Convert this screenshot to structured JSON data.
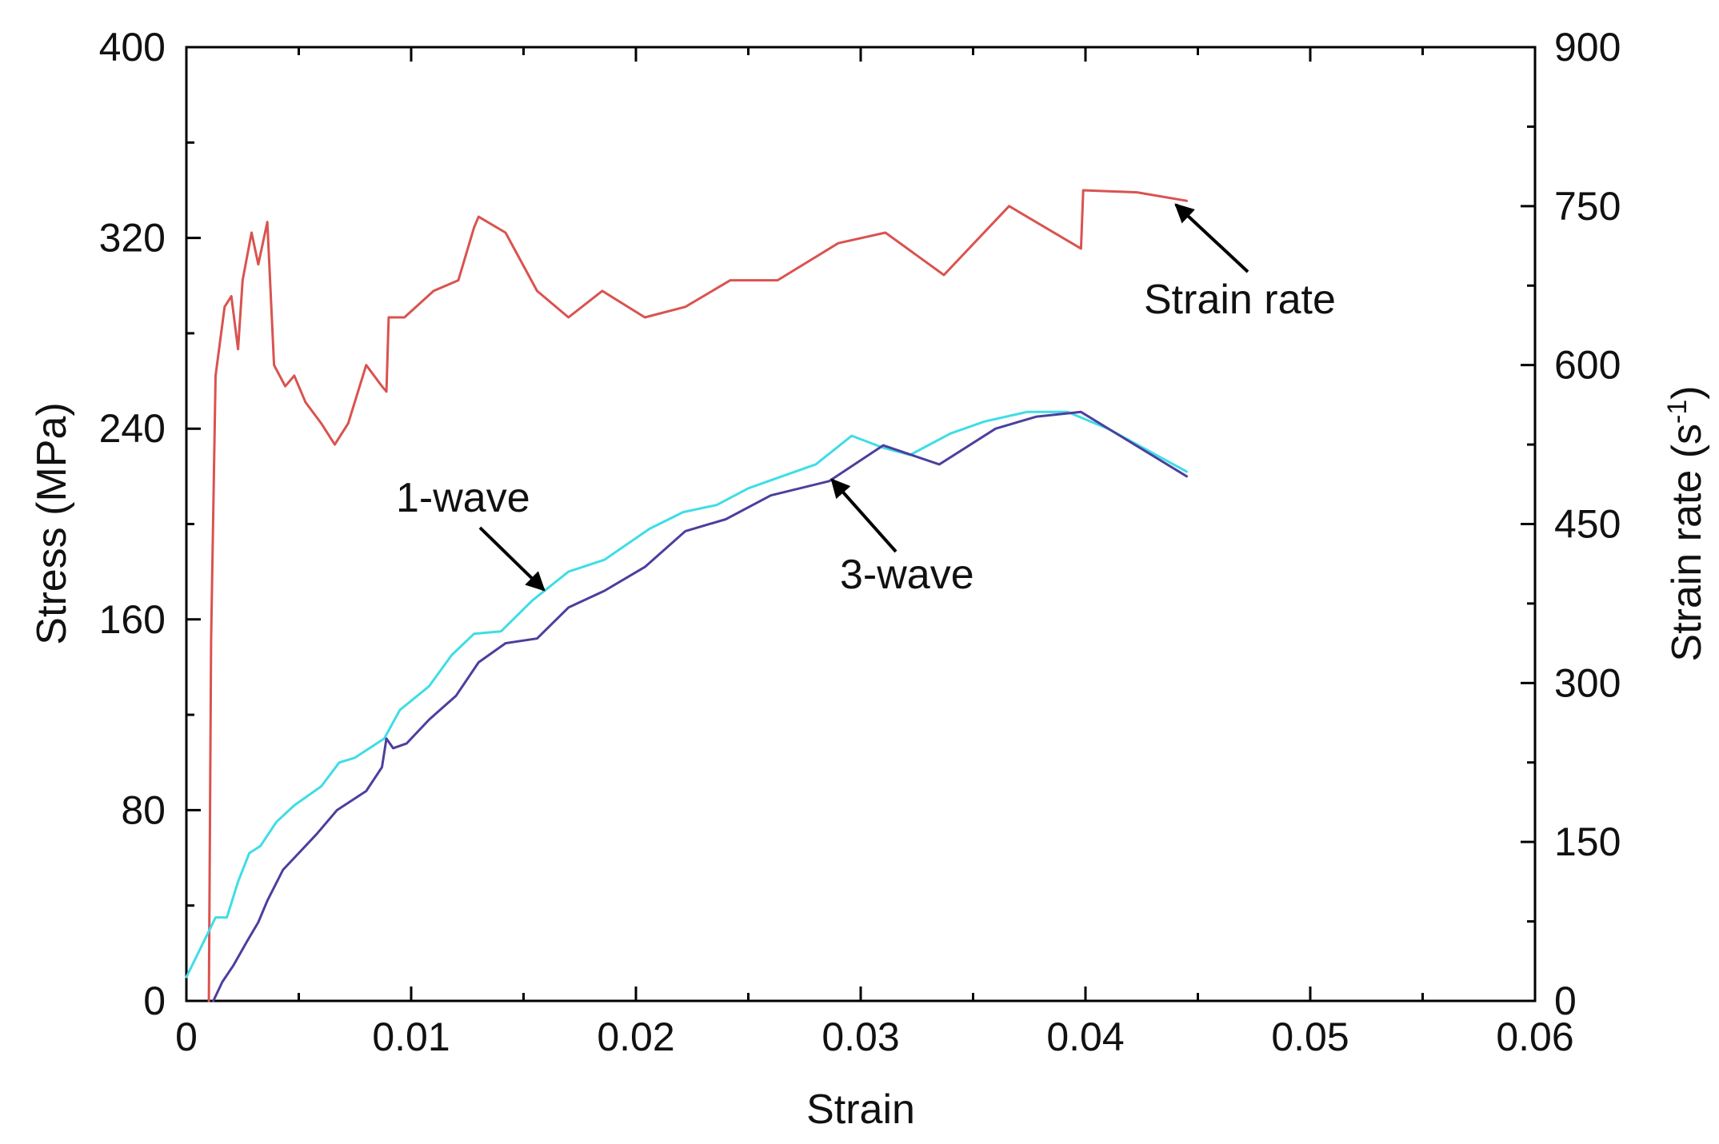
{
  "chart_data": {
    "type": "line",
    "title": "",
    "xlabel": "Strain",
    "ylabel": "Stress (MPa)",
    "y2label_main": "Strain rate (s",
    "y2label_sup": "-1",
    "y2label_close": ")",
    "xlim": [
      0,
      0.06
    ],
    "ylim": [
      0,
      400
    ],
    "y2lim": [
      0,
      900
    ],
    "xticks": [
      0,
      0.01,
      0.02,
      0.03,
      0.04,
      0.05,
      0.06
    ],
    "xtick_labels": [
      "0",
      "0.01",
      "0.02",
      "0.03",
      "0.04",
      "0.05",
      "0.06"
    ],
    "yticks": [
      0,
      80,
      160,
      240,
      320,
      400
    ],
    "ytick_labels": [
      "0",
      "80",
      "160",
      "240",
      "320",
      "400"
    ],
    "y2ticks": [
      0,
      150,
      300,
      450,
      600,
      750,
      900
    ],
    "y2tick_labels": [
      "0",
      "150",
      "300",
      "450",
      "600",
      "750",
      "900"
    ],
    "grid": false,
    "series": [
      {
        "name": "Strain rate",
        "axis": "right",
        "color": "#d9534f",
        "x": [
          0.001,
          0.0011,
          0.0013,
          0.0017,
          0.002,
          0.0023,
          0.0025,
          0.0029,
          0.0032,
          0.0036,
          0.0039,
          0.0044,
          0.0048,
          0.0053,
          0.006,
          0.0066,
          0.0072,
          0.008,
          0.0087,
          0.0089,
          0.009,
          0.0097,
          0.011,
          0.0121,
          0.0128,
          0.013,
          0.0142,
          0.0156,
          0.017,
          0.0185,
          0.0204,
          0.0222,
          0.0242,
          0.0263,
          0.029,
          0.0311,
          0.0337,
          0.0366,
          0.0398,
          0.0399,
          0.0423,
          0.0445
        ],
        "values": [
          0,
          340,
          590,
          655,
          665,
          615,
          680,
          725,
          695,
          735,
          600,
          580,
          590,
          565,
          545,
          525,
          545,
          600,
          580,
          575,
          645,
          645,
          670,
          680,
          730,
          740,
          725,
          670,
          645,
          670,
          645,
          655,
          680,
          680,
          715,
          725,
          685,
          750,
          710,
          765,
          763,
          755
        ]
      },
      {
        "name": "1-wave",
        "axis": "left",
        "color": "#3fdde6",
        "x": [
          0.0,
          0.0013,
          0.0018,
          0.0023,
          0.0028,
          0.0033,
          0.004,
          0.0048,
          0.006,
          0.0068,
          0.0075,
          0.0088,
          0.0095,
          0.0108,
          0.0118,
          0.0128,
          0.014,
          0.0154,
          0.017,
          0.0186,
          0.0206,
          0.0221,
          0.0236,
          0.025,
          0.0265,
          0.028,
          0.0296,
          0.031,
          0.0322,
          0.034,
          0.0355,
          0.0374,
          0.0392,
          0.041,
          0.0445
        ],
        "values": [
          10,
          35,
          35,
          50,
          62,
          65,
          75,
          82,
          90,
          100,
          102,
          110,
          122,
          132,
          145,
          154,
          155,
          168,
          180,
          185,
          198,
          205,
          208,
          215,
          220,
          225,
          237,
          232,
          229,
          238,
          243,
          247,
          247,
          240,
          222
        ]
      },
      {
        "name": "3-wave",
        "axis": "left",
        "color": "#4b3f9e",
        "x": [
          0.0012,
          0.0016,
          0.0021,
          0.0027,
          0.0032,
          0.0036,
          0.0043,
          0.005,
          0.0058,
          0.0067,
          0.008,
          0.0087,
          0.0089,
          0.0092,
          0.0098,
          0.0108,
          0.012,
          0.013,
          0.0142,
          0.0156,
          0.017,
          0.0186,
          0.0204,
          0.0222,
          0.024,
          0.026,
          0.0286,
          0.031,
          0.0335,
          0.036,
          0.0378,
          0.0398,
          0.0445
        ],
        "values": [
          0,
          8,
          15,
          25,
          33,
          42,
          55,
          62,
          70,
          80,
          88,
          98,
          110,
          106,
          108,
          118,
          128,
          142,
          150,
          152,
          165,
          172,
          182,
          197,
          202,
          212,
          218,
          233,
          225,
          240,
          245,
          247,
          220
        ]
      }
    ],
    "annotations": [
      {
        "text": "Strain rate",
        "target_series": "Strain rate"
      },
      {
        "text": "1-wave",
        "target_series": "1-wave"
      },
      {
        "text": "3-wave",
        "target_series": "3-wave"
      }
    ]
  }
}
